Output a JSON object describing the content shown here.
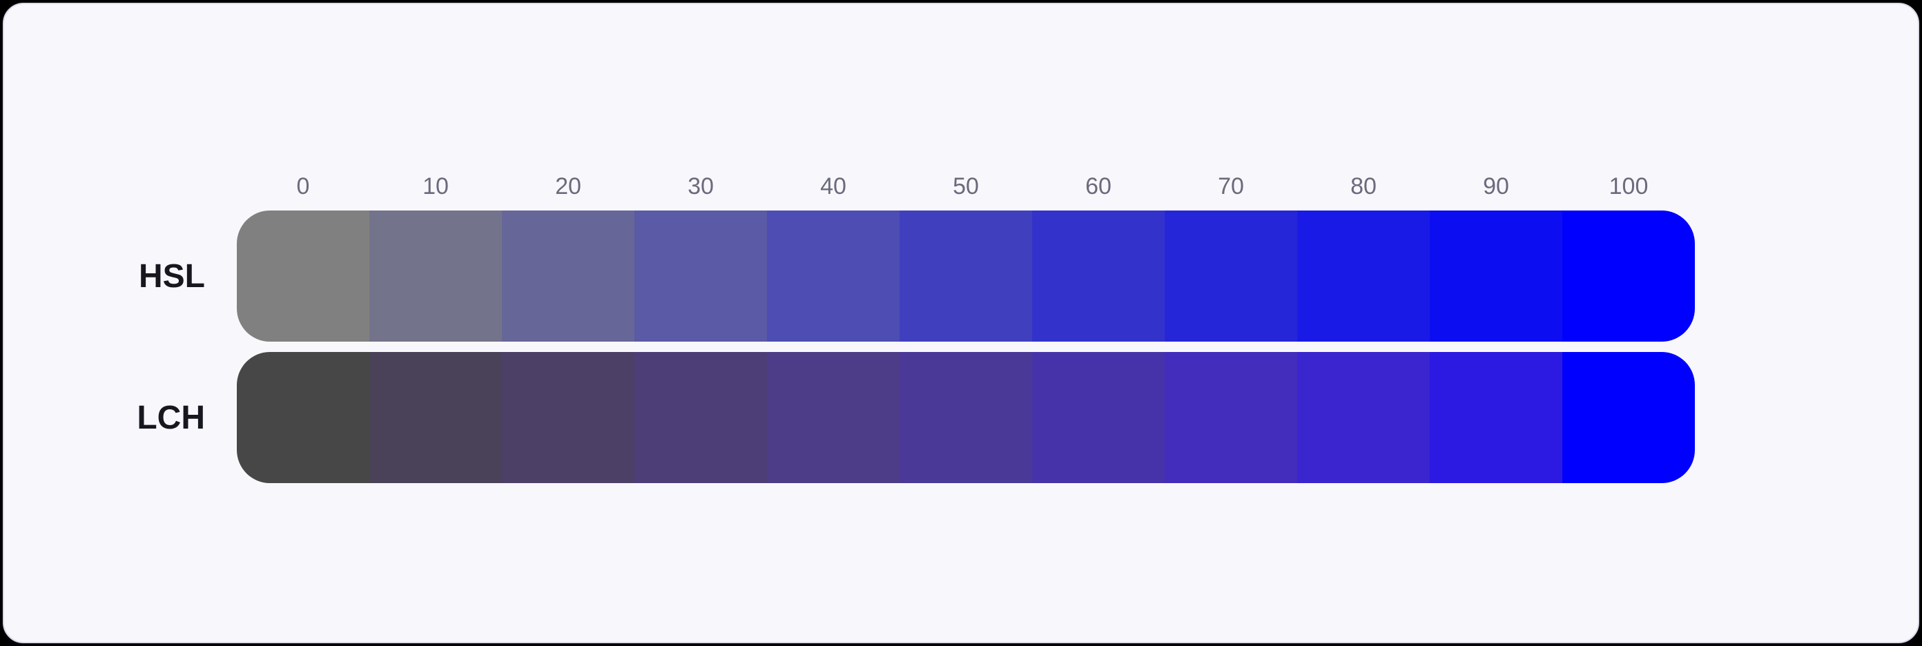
{
  "page": {
    "outer_background": "#000000",
    "card_background": "#f8f8fc",
    "card_border": "#dcdae8"
  },
  "chart_data": {
    "type": "heatmap",
    "title": "",
    "grid": false,
    "legend": "none",
    "x_axis": {
      "position": "top",
      "tick_labels": [
        "0",
        "10",
        "20",
        "30",
        "40",
        "50",
        "60",
        "70",
        "80",
        "90",
        "100"
      ],
      "tick_color": "#6b6a7d"
    },
    "row_label_color": "#17171f",
    "rows": [
      {
        "label": "HSL",
        "swatches": [
          "#808080",
          "#73738c",
          "#666699",
          "#5a5aa6",
          "#4d4db3",
          "#4040bf",
          "#3333cc",
          "#2626d9",
          "#1a1ae6",
          "#0d0df2",
          "#0000ff"
        ]
      },
      {
        "label": "LCH",
        "swatches": [
          "#474747",
          "#4a4258",
          "#4c4067",
          "#4d3e77",
          "#4d3c87",
          "#4a3997",
          "#4733a9",
          "#422dbd",
          "#3a25cf",
          "#2c19e2",
          "#0000ff"
        ]
      }
    ]
  }
}
